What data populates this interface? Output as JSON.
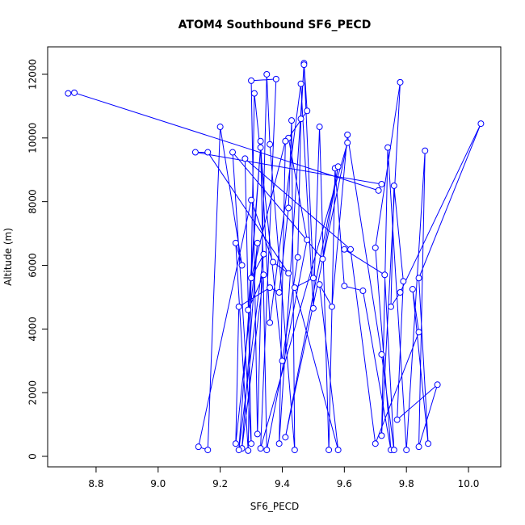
{
  "chart_data": {
    "type": "line",
    "title": "ATOM4 Southbound SF6_PECD",
    "x_label": "SF6_PECD",
    "y_label": "Altitude (m)",
    "color": "#0000ff",
    "x": [
      8.71,
      8.73,
      9.71,
      9.72,
      9.12,
      9.16,
      9.42,
      9.37,
      9.3,
      9.13,
      9.16,
      9.2,
      9.27,
      9.25,
      9.29,
      9.31,
      9.4,
      9.45,
      9.46,
      9.47,
      9.48,
      9.42,
      9.48,
      9.35,
      9.33,
      9.36,
      9.46,
      9.5,
      9.52,
      9.55,
      9.57,
      9.6,
      9.66,
      9.75,
      9.7,
      9.78,
      9.72,
      9.74,
      9.8,
      9.86,
      9.84,
      9.9,
      9.77,
      9.79,
      9.76,
      9.75,
      9.78,
      10.04,
      9.84,
      9.87,
      9.82,
      9.84,
      9.7,
      9.62,
      9.28,
      9.3,
      9.24,
      9.53,
      9.58,
      9.41,
      9.61,
      9.33,
      9.38,
      9.3,
      9.32,
      9.35,
      9.36,
      9.44,
      9.43,
      9.42,
      9.39,
      9.36,
      9.26,
      9.25,
      9.32,
      9.27,
      9.34,
      9.29,
      9.33,
      9.26,
      9.34,
      9.3,
      9.41,
      9.39,
      9.47,
      9.5,
      9.44,
      9.58,
      9.52,
      9.56,
      9.61,
      9.72,
      9.76,
      9.73,
      9.6
    ],
    "values": [
      11400,
      11420,
      8350,
      8550,
      9550,
      9550,
      5750,
      6100,
      8050,
      300,
      200,
      10350,
      6000,
      6700,
      180,
      11400,
      3000,
      6250,
      10600,
      12350,
      10850,
      10000,
      6800,
      200,
      9900,
      4200,
      11700,
      4650,
      10350,
      200,
      9050,
      5350,
      5200,
      200,
      6550,
      11750,
      650,
      9700,
      200,
      9600,
      300,
      2250,
      1150,
      5500,
      8500,
      4700,
      5150,
      10450,
      5600,
      400,
      5250,
      3900,
      400,
      6500,
      9350,
      400,
      9550,
      6200,
      9100,
      600,
      9850,
      250,
      11850,
      11800,
      700,
      12000,
      9800,
      200,
      10550,
      7800,
      5150,
      5300,
      4700,
      400,
      6700,
      250,
      5700,
      4600,
      9700,
      200,
      6350,
      5600,
      9900,
      400,
      12300,
      5600,
      5300,
      200,
      5400,
      4700,
      10100,
      3200,
      200,
      5700,
      6500
    ],
    "xlim": [
      8.644,
      10.104
    ],
    "ylim": [
      -330,
      12862
    ],
    "xticks": [
      8.8,
      {
        "value": 9,
        "label": "9.0"
      },
      9.2,
      9.4,
      9.6,
      9.8,
      {
        "value": 10,
        "label": "10.0"
      }
    ],
    "yticks": [
      0,
      2000,
      4000,
      6000,
      8000,
      10000,
      12000
    ]
  }
}
